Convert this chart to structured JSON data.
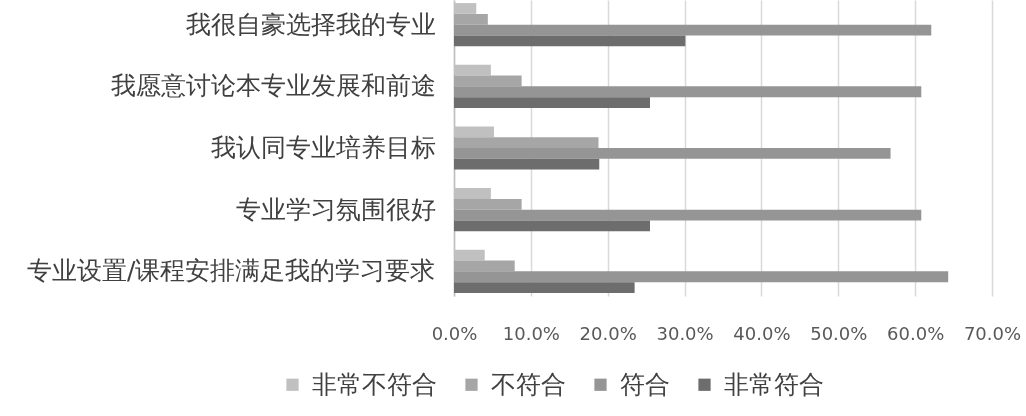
{
  "chart_data": {
    "type": "bar",
    "orientation": "horizontal",
    "categories": [
      "我很自豪选择我的专业",
      "我愿意讨论本专业发展和前途",
      "我认同专业培养目标",
      "专业学习氛围很好",
      "专业设置/课程安排满足我的学习要求"
    ],
    "series": [
      {
        "name": "非常不符合",
        "color": "#c0c0c0",
        "values": [
          2.9,
          4.8,
          5.2,
          4.8,
          4.0
        ]
      },
      {
        "name": "不符合",
        "color": "#a6a6a6",
        "values": [
          4.4,
          8.8,
          18.8,
          8.8,
          7.9
        ]
      },
      {
        "name": "符合",
        "color": "#959595",
        "values": [
          62.1,
          60.8,
          56.8,
          60.8,
          64.3
        ]
      },
      {
        "name": "非常符合",
        "color": "#6d6d6d",
        "values": [
          30.1,
          25.5,
          18.9,
          25.5,
          23.5
        ]
      }
    ],
    "xlim": [
      0,
      70
    ],
    "xticks": [
      {
        "value": 0,
        "label": "0.0%"
      },
      {
        "value": 10,
        "label": "10.0%"
      },
      {
        "value": 20,
        "label": "20.0%"
      },
      {
        "value": 30,
        "label": "30.0%"
      },
      {
        "value": 40,
        "label": "40.0%"
      },
      {
        "value": 50,
        "label": "50.0%"
      },
      {
        "value": 60,
        "label": "60.0%"
      },
      {
        "value": 70,
        "label": "70.0%"
      }
    ],
    "grid": "x",
    "legend": "bottom"
  }
}
